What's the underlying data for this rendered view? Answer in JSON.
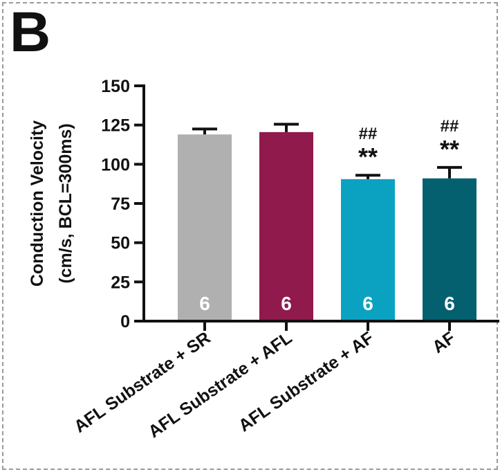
{
  "panel_label": "B",
  "chart_data": {
    "type": "bar",
    "categories": [
      "AFL Substrate + SR",
      "AFL Substrate + AFL",
      "AFL Substrate + AF",
      "AF"
    ],
    "values": [
      119,
      120.5,
      90.5,
      91
    ],
    "errors": [
      3.5,
      5,
      2.5,
      7
    ],
    "n_labels": [
      "6",
      "6",
      "6",
      "6"
    ],
    "sig_stars": [
      "",
      "",
      "**",
      "**"
    ],
    "sig_hash": [
      "",
      "",
      "##",
      "##"
    ],
    "colors": [
      "#b0b0b0",
      "#8f1a4b",
      "#0ba2c2",
      "#04606f"
    ],
    "ylabel_line1": "Conduction Velocity",
    "ylabel_line2": "(cm/s, BCL=300ms)",
    "ylim": [
      0,
      150
    ],
    "yticks": [
      0,
      25,
      50,
      75,
      100,
      125,
      150
    ],
    "grid": false
  }
}
